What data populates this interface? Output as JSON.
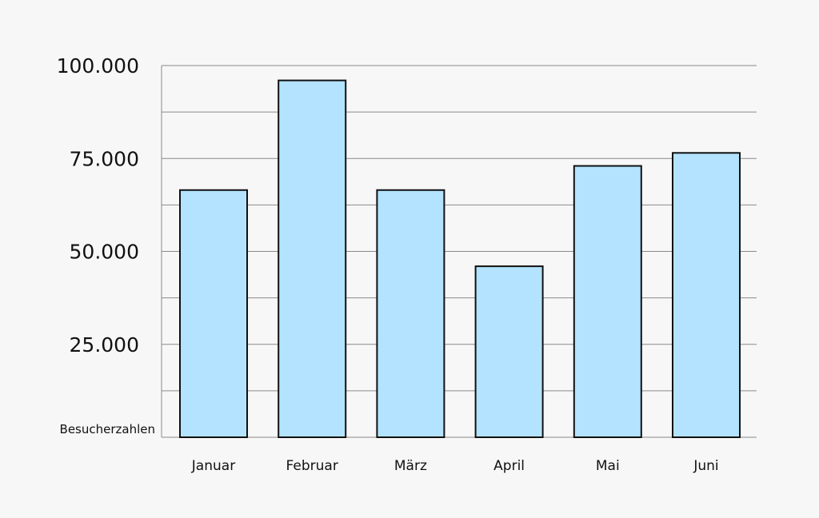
{
  "colors": {
    "background": "#f7f7f7",
    "bar_fill": "#b3e3ff",
    "bar_stroke": "#111111",
    "grid": "#8a8a8a",
    "text": "#111111"
  },
  "chart_data": {
    "type": "bar",
    "title": "",
    "xlabel": "",
    "ylabel": "Besucherzahlen",
    "categories": [
      "Januar",
      "Februar",
      "März",
      "April",
      "Mai",
      "Juni"
    ],
    "values": [
      66500,
      96000,
      66500,
      46000,
      73000,
      76500
    ],
    "ylim": [
      0,
      100000
    ],
    "y_tick_labels": [
      "25.000",
      "50.000",
      "75.000",
      "100.000"
    ],
    "y_tick_values": [
      25000,
      50000,
      75000,
      100000
    ],
    "grid": true,
    "grid_step": 12500,
    "legend": "none"
  }
}
